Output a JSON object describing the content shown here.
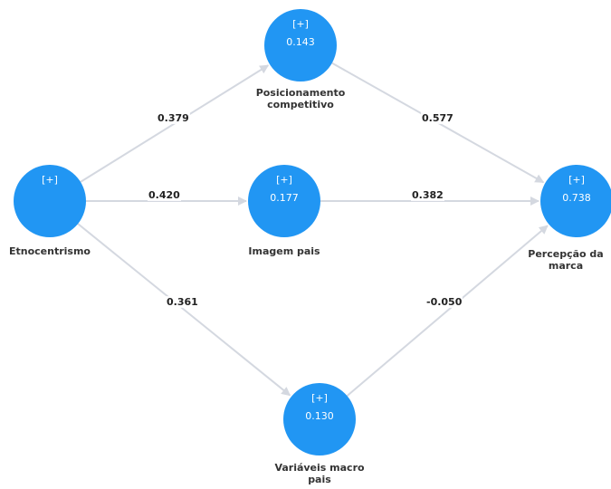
{
  "colors": {
    "node": "#2196F3",
    "edge": "#d4d8e0",
    "text": "#333333"
  },
  "nodes": [
    {
      "id": "etnocentrismo",
      "label_lines": [
        "Etnocentrismo"
      ],
      "expand": "[+]",
      "value": ""
    },
    {
      "id": "posicionamento",
      "label_lines": [
        "Posicionamento",
        "competitivo"
      ],
      "expand": "[+]",
      "value": "0.143"
    },
    {
      "id": "imagem",
      "label_lines": [
        "Imagem pais"
      ],
      "expand": "[+]",
      "value": "0.177"
    },
    {
      "id": "variaveis",
      "label_lines": [
        "Variáveis macro",
        "pais"
      ],
      "expand": "[+]",
      "value": "0.130"
    },
    {
      "id": "percepcao",
      "label_lines": [
        "Percepção da",
        "marca"
      ],
      "expand": "[+]",
      "value": "0.738"
    }
  ],
  "edges": [
    {
      "from": "etnocentrismo",
      "to": "posicionamento",
      "coefficient": "0.379"
    },
    {
      "from": "etnocentrismo",
      "to": "imagem",
      "coefficient": "0.420"
    },
    {
      "from": "etnocentrismo",
      "to": "variaveis",
      "coefficient": "0.361"
    },
    {
      "from": "posicionamento",
      "to": "percepcao",
      "coefficient": "0.577"
    },
    {
      "from": "imagem",
      "to": "percepcao",
      "coefficient": "0.382"
    },
    {
      "from": "variaveis",
      "to": "percepcao",
      "coefficient": "-0.050"
    }
  ]
}
